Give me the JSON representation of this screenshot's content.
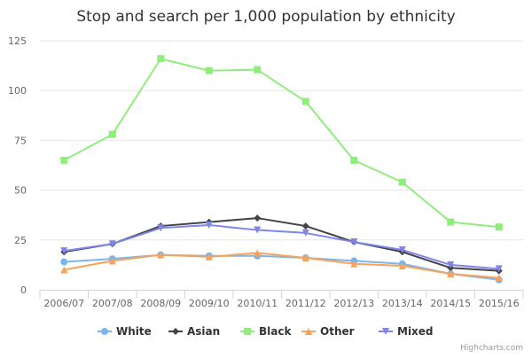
{
  "chart_data": {
    "type": "line",
    "title": "Stop and search per 1,000 population by ethnicity",
    "xlabel": "",
    "ylabel": "",
    "categories": [
      "2006/07",
      "2007/08",
      "2008/09",
      "2009/10",
      "2010/11",
      "2011/12",
      "2012/13",
      "2013/14",
      "2014/15",
      "2015/16"
    ],
    "ylim": [
      0,
      125
    ],
    "yticks": [
      0,
      25,
      50,
      75,
      100,
      125
    ],
    "grid": true,
    "legend_position": "bottom-center",
    "series": [
      {
        "name": "White",
        "color": "#7cb5ec",
        "marker": "circle",
        "values": [
          14,
          15.5,
          17.5,
          17,
          17,
          16,
          14.5,
          13,
          8,
          5
        ]
      },
      {
        "name": "Asian",
        "color": "#434348",
        "marker": "diamond",
        "values": [
          19,
          23,
          32,
          34,
          36,
          32,
          24,
          19,
          11,
          9.5
        ]
      },
      {
        "name": "Black",
        "color": "#90ed7d",
        "marker": "square",
        "values": [
          65,
          78,
          116,
          110,
          110.5,
          94.5,
          65,
          54,
          34,
          31.5
        ]
      },
      {
        "name": "Other",
        "color": "#f7a35c",
        "marker": "triangle",
        "values": [
          10,
          14.5,
          17.5,
          16.5,
          18.5,
          16,
          13,
          12,
          8,
          6
        ]
      },
      {
        "name": "Mixed",
        "color": "#8085e9",
        "marker": "triangle-down",
        "values": [
          19.5,
          23,
          31,
          32.5,
          30,
          28.5,
          24,
          20,
          12.5,
          10.5
        ]
      }
    ]
  },
  "credits": "Highcharts.com"
}
